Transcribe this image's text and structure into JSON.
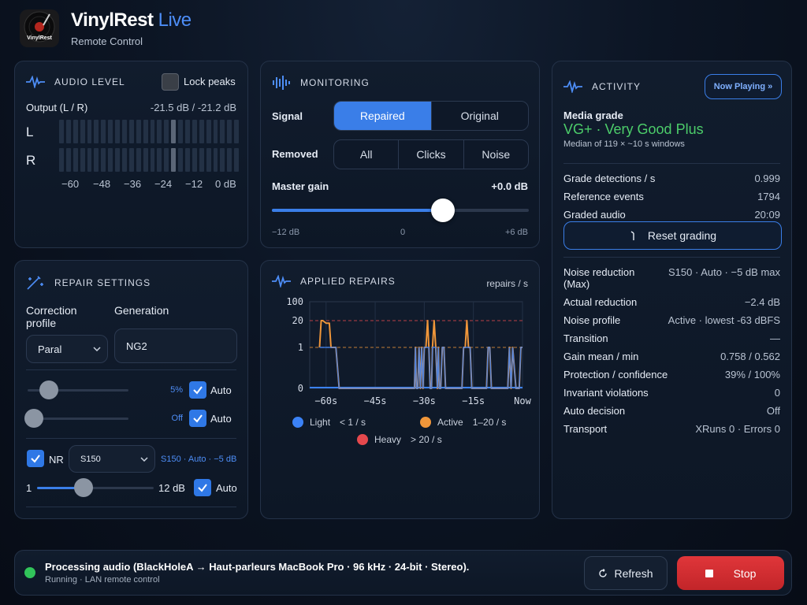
{
  "app": {
    "name": "VinylRest",
    "name_accent": "Live",
    "subtitle": "Remote Control",
    "logo_text": "VinylRest"
  },
  "audio_level": {
    "title": "AUDIO LEVEL",
    "lock_peaks_label": "Lock peaks",
    "lock_peaks_checked": false,
    "output_label": "Output (L / R)",
    "output_value": "-21.5 dB / -21.2 dB",
    "channel_l": "L",
    "channel_r": "R",
    "scale": [
      "−60",
      "−48",
      "−36",
      "−24",
      "−12",
      "0 dB"
    ]
  },
  "monitoring": {
    "title": "MONITORING",
    "signal_label": "Signal",
    "signal_options": [
      "Repaired",
      "Original"
    ],
    "signal_selected": "Repaired",
    "removed_label": "Removed",
    "removed_options": [
      "All",
      "Clicks",
      "Noise"
    ],
    "master_gain_label": "Master gain",
    "master_gain_value": "+0.0 dB",
    "gain_min": "−12 dB",
    "gain_mid": "0",
    "gain_max": "+6 dB",
    "gain_fraction": 0.667
  },
  "activity": {
    "title": "ACTIVITY",
    "now_playing_button": "Now Playing »",
    "media_grade_label": "Media grade",
    "media_grade_value": "VG+ · Very Good Plus",
    "media_grade_note": "Median of 119 × ~10 s windows",
    "stats_top": [
      {
        "k": "Grade detections / s",
        "v": "0.999"
      },
      {
        "k": "Reference events",
        "v": "1794"
      },
      {
        "k": "Graded audio",
        "v": "20:09"
      }
    ],
    "reset_button": "Reset grading",
    "noise_reduction_k": "Noise reduction\n(Max)",
    "noise_reduction_v": "S150 · Auto · −5 dB max",
    "stats_bottom": [
      {
        "k": "Actual reduction",
        "v": "−2.4 dB"
      },
      {
        "k": "Noise profile",
        "v": "Active · lowest -63 dBFS"
      },
      {
        "k": "Transition",
        "v": "—"
      },
      {
        "k": "Gain mean / min",
        "v": "0.758 / 0.562"
      },
      {
        "k": "Protection / confidence",
        "v": "39% / 100%"
      },
      {
        "k": "Invariant violations",
        "v": "0"
      },
      {
        "k": "Auto decision",
        "v": "Off"
      },
      {
        "k": "Transport",
        "v": "XRuns 0 · Errors 0"
      }
    ]
  },
  "repair_settings": {
    "title": "REPAIR SETTINGS",
    "correction_profile_label": "Correction\nprofile",
    "correction_profile_value": "Paral",
    "generation_label": "Generation",
    "generation_value": "NG2",
    "slider1_value": "5%",
    "slider1_fraction": 0.15,
    "slider1_auto": "Auto",
    "slider2_value": "Off",
    "slider2_fraction": 0.0,
    "slider2_auto": "Auto",
    "nr_label": "NR",
    "nr_select": "S150",
    "nr_info": "S150 · Auto · −5 dB",
    "nr_min": "1",
    "nr_max": "12 dB",
    "nr_fraction": 0.4,
    "nr_auto": "Auto"
  },
  "applied_repairs": {
    "title": "APPLIED REPAIRS",
    "unit": "repairs / s",
    "legend": [
      {
        "name": "Light",
        "range": "< 1 / s",
        "color": "#3b82f6"
      },
      {
        "name": "Active",
        "range": "1–20 / s",
        "color": "#f0963a"
      },
      {
        "name": "Heavy",
        "range": "> 20 / s",
        "color": "#e5484d"
      }
    ]
  },
  "chart_data": {
    "type": "line",
    "y_tick_labels": [
      "100",
      "20",
      "1",
      "0"
    ],
    "x_tick_labels": [
      "−60s",
      "−45s",
      "−30s",
      "−15s",
      "Now"
    ],
    "thresholds": [
      {
        "value": 20,
        "color": "#e5484d"
      },
      {
        "value": 1,
        "color": "#f0963a"
      }
    ],
    "series": [
      {
        "name": "Active",
        "color": "#f0963a",
        "x": [
          -62,
          -61.5,
          -61,
          -60,
          -59,
          -58.5,
          -58,
          -57.5,
          -57,
          -56,
          -33,
          -32.7,
          -32.4,
          -32,
          -31.6,
          -31.2,
          -30.8,
          -30.4,
          -30,
          -29.5,
          -29,
          -28.6,
          -28.2,
          -27.8,
          -27.5,
          -27,
          -26.5,
          -26,
          -25.7,
          -25.4,
          -25,
          -24.5,
          -24,
          -23.5,
          -18.5,
          -18,
          -17.5,
          -17,
          -16.5,
          -16,
          -15.5,
          -15,
          -11,
          -10.5,
          -10,
          -9.5,
          -9,
          -4.5,
          -4,
          -3.5,
          -3,
          -2,
          -1,
          -0.5,
          0
        ],
        "y": [
          1,
          20,
          20,
          15,
          15,
          1,
          1,
          1,
          1,
          0,
          0,
          1,
          0,
          0,
          1,
          0,
          1,
          0,
          1,
          1,
          20,
          1,
          0,
          0,
          1,
          20,
          1,
          0,
          1,
          0,
          0,
          1,
          1,
          0,
          0,
          1,
          1,
          20,
          1,
          1,
          0,
          0,
          0,
          1,
          1,
          0,
          0,
          0,
          1,
          0,
          1,
          0,
          0,
          1,
          1
        ]
      }
    ]
  },
  "status": {
    "text": "Processing audio (BlackHoleA → Haut-parleurs MacBook Pro · 96 kHz · 24-bit · Stereo).",
    "sub": "Running · LAN remote control",
    "refresh_button": "Refresh",
    "stop_button": "Stop",
    "indicator_color": "#31c45a"
  }
}
